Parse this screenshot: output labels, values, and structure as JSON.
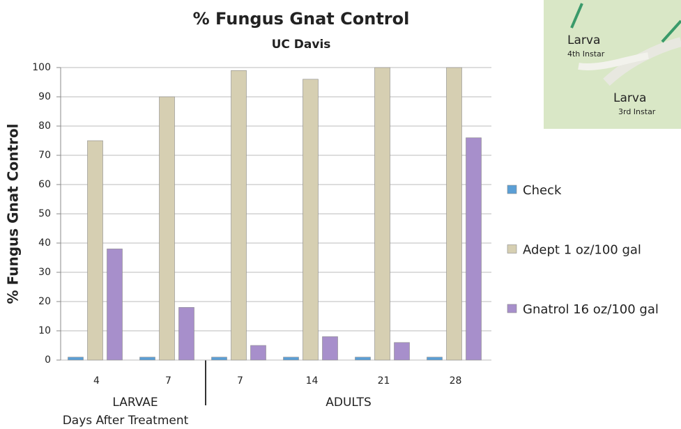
{
  "chart_data": {
    "type": "bar",
    "title": "% Fungus Gnat Control",
    "subtitle": "UC Davis",
    "y_label": "% Fungus Gnat Control",
    "x_label": "Days After Treatment",
    "group_labels": [
      "LARVAE",
      "ADULTS"
    ],
    "categories": [
      "4",
      "7",
      "7",
      "14",
      "21",
      "28"
    ],
    "series": [
      {
        "name": "Check",
        "color": "#5b9fd6",
        "values": [
          1,
          1,
          1,
          1,
          1,
          1
        ]
      },
      {
        "name": "Adept 1 oz/100 gal",
        "color": "#d6cfb2",
        "values": [
          75,
          90,
          99,
          96,
          100,
          100
        ]
      },
      {
        "name": "Gnatrol 16 oz/100 gal",
        "color": "#a78fcb",
        "values": [
          38,
          18,
          5,
          8,
          6,
          76
        ]
      }
    ],
    "ylim": [
      0,
      100
    ],
    "yticks": [
      0,
      10,
      20,
      30,
      40,
      50,
      60,
      70,
      80,
      90,
      100
    ],
    "grid": true
  },
  "inset": {
    "labels": [
      [
        "Larva",
        "4th Instar"
      ],
      [
        "Larva",
        "3rd Instar"
      ]
    ]
  }
}
